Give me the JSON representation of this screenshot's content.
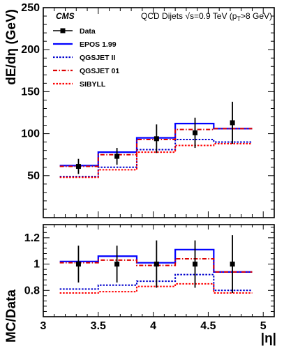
{
  "chart_data": [
    {
      "type": "line",
      "title": "",
      "xlabel": "",
      "ylabel": "dE/dη (GeV)",
      "xlim": [
        3.0,
        5.1
      ],
      "ylim": [
        0,
        250
      ],
      "yticks": [
        50,
        100,
        150,
        200,
        250
      ],
      "bin_edges": [
        3.15,
        3.5,
        3.85,
        4.2,
        4.55,
        4.9
      ],
      "annotations": {
        "experiment": "CMS",
        "info": "QCD Dijets  √s=0.9 TeV (p T>8 GeV)",
        "info_pre": "QCD Dijets  ",
        "info_sqrt": "√s=0.9 TeV (p",
        "info_sub": "T",
        "info_post": ">8 GeV)"
      },
      "legend_position": "top-left",
      "data": {
        "name": "Data",
        "x": [
          3.32,
          3.67,
          4.03,
          4.38,
          4.72
        ],
        "y": [
          61,
          73,
          94,
          101,
          113
        ],
        "yerr": [
          9,
          10,
          17,
          18,
          25
        ]
      },
      "series": [
        {
          "name": "EPOS 1.99",
          "style": "solid",
          "color": "#0000ff",
          "values": [
            62,
            78,
            95,
            112,
            106
          ]
        },
        {
          "name": "QGSJET II",
          "style": "dotted",
          "color": "#0000cc",
          "values": [
            49,
            60,
            81,
            93,
            90
          ]
        },
        {
          "name": "QGSJET 01",
          "style": "dashdot",
          "color": "#dd0000",
          "values": [
            61,
            75,
            93,
            105,
            106
          ]
        },
        {
          "name": "SIBYLL",
          "style": "dotted",
          "color": "#ff0000",
          "values": [
            48,
            57,
            78,
            86,
            88
          ]
        }
      ]
    },
    {
      "type": "line",
      "title": "",
      "xlabel": "|η|",
      "ylabel": "MC/Data",
      "xlim": [
        3.0,
        5.1
      ],
      "ylim": [
        0.6,
        1.3
      ],
      "xticks": [
        3,
        3.5,
        4,
        4.5,
        5
      ],
      "yticks": [
        0.8,
        1,
        1.2
      ],
      "ytick_labels": [
        "0.8",
        "1",
        "1.2"
      ],
      "bin_edges": [
        3.15,
        3.5,
        3.85,
        4.2,
        4.55,
        4.9
      ],
      "data": {
        "name": "Data",
        "x": [
          3.32,
          3.67,
          4.03,
          4.38,
          4.72
        ],
        "y": [
          1,
          1,
          1,
          1,
          1
        ],
        "yerr": [
          0.14,
          0.14,
          0.18,
          0.18,
          0.22
        ]
      },
      "series": [
        {
          "name": "EPOS 1.99",
          "style": "solid",
          "color": "#0000ff",
          "values": [
            1.02,
            1.06,
            1.01,
            1.11,
            0.94
          ]
        },
        {
          "name": "QGSJET II",
          "style": "dotted",
          "color": "#0000cc",
          "values": [
            0.81,
            0.84,
            0.87,
            0.92,
            0.8
          ]
        },
        {
          "name": "QGSJET 01",
          "style": "dashdot",
          "color": "#dd0000",
          "values": [
            1.01,
            1.03,
            0.99,
            1.04,
            0.94
          ]
        },
        {
          "name": "SIBYLL",
          "style": "dotted",
          "color": "#ff0000",
          "values": [
            0.78,
            0.79,
            0.83,
            0.85,
            0.78
          ]
        }
      ]
    }
  ]
}
